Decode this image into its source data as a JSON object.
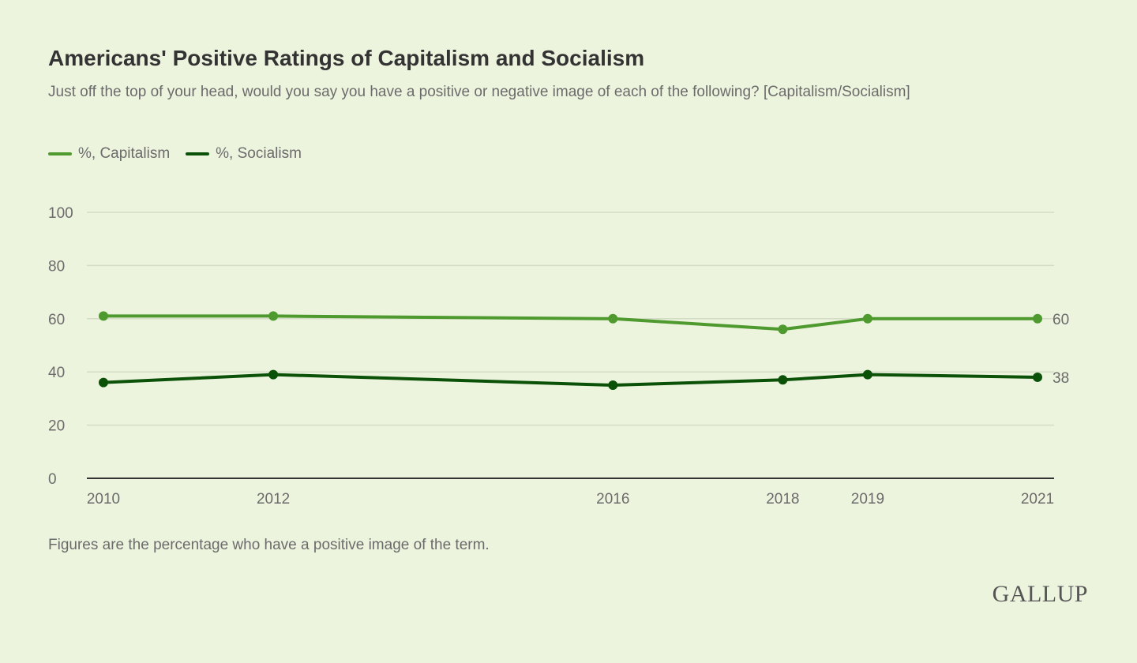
{
  "chart_data": {
    "type": "line",
    "title": "Americans' Positive Ratings of Capitalism and Socialism",
    "subtitle": "Just off the top of your head, would you say you have a positive or negative image of each of the following? [Capitalism/Socialism]",
    "x": [
      2010,
      2012,
      2016,
      2018,
      2019,
      2021
    ],
    "x_tick_labels": [
      "2010",
      "2012",
      "2016",
      "2018",
      "2019",
      "2021"
    ],
    "y_ticks": [
      0,
      20,
      40,
      60,
      80,
      100
    ],
    "y_tick_labels": [
      "0",
      "20",
      "40",
      "60",
      "80",
      "100"
    ],
    "ylim": [
      0,
      100
    ],
    "xlabel": "",
    "ylabel": "",
    "grid": true,
    "legend_placement": "top-left",
    "series": [
      {
        "name": "%, Capitalism",
        "color": "#4e9a2e",
        "values": [
          61,
          61,
          60,
          56,
          60,
          60
        ],
        "end_label": "60"
      },
      {
        "name": "%, Socialism",
        "color": "#0b5208",
        "values": [
          36,
          39,
          35,
          37,
          39,
          38
        ],
        "end_label": "38"
      }
    ],
    "note": "Figures are the percentage who have a positive image of the term."
  },
  "brand": "GALLUP"
}
